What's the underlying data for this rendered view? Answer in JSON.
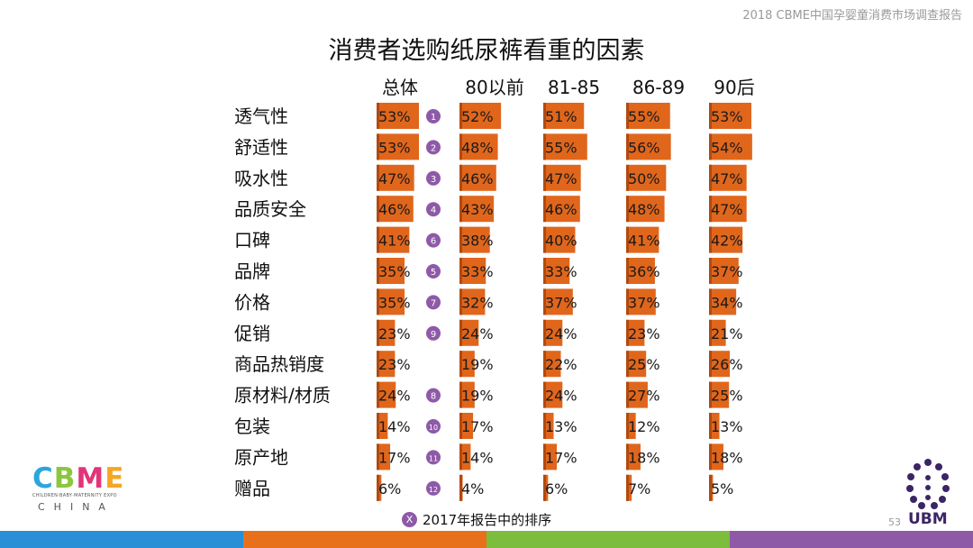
{
  "header_note": "2018 CBME中国孕婴童消费市场调查报告",
  "title": "消费者选购纸尿裤看重的因素",
  "legend": {
    "badge": "X",
    "text": "2017年报告中的排序"
  },
  "page_number": "53",
  "logos": {
    "cbme": {
      "letters": [
        "C",
        "B",
        "M",
        "E"
      ],
      "tagline": "CHILDREN·BABY·MATERNITY EXPO",
      "location": "CHINA"
    },
    "ubm": "UBM"
  },
  "colors": {
    "bar": "#e0661c",
    "bar_edge": "#b14a0f",
    "rank_badge": "#8e5aa8",
    "band": [
      "#2a8fd6",
      "#e8701b",
      "#7cbd3e",
      "#8e5aa8"
    ],
    "cbme": [
      "#2aa6dc",
      "#8cc63f",
      "#e2357a",
      "#f5a623"
    ]
  },
  "chart_data": {
    "type": "bar",
    "categories": [
      "透气性",
      "舒适性",
      "吸水性",
      "品质安全",
      "口碑",
      "品牌",
      "价格",
      "促销",
      "商品热销度",
      "原材料/材质",
      "包装",
      "原产地",
      "赠品"
    ],
    "series": [
      {
        "name": "总体",
        "values": [
          53,
          53,
          47,
          46,
          41,
          35,
          35,
          23,
          23,
          24,
          14,
          17,
          6
        ]
      },
      {
        "name": "80以前",
        "values": [
          52,
          48,
          46,
          43,
          38,
          33,
          32,
          24,
          19,
          19,
          17,
          14,
          4
        ]
      },
      {
        "name": "81-85",
        "values": [
          51,
          55,
          47,
          46,
          40,
          33,
          37,
          24,
          22,
          24,
          13,
          17,
          6
        ]
      },
      {
        "name": "86-89",
        "values": [
          55,
          56,
          50,
          48,
          41,
          36,
          37,
          23,
          25,
          27,
          12,
          18,
          7
        ]
      },
      {
        "name": "90后",
        "values": [
          53,
          54,
          47,
          47,
          42,
          37,
          34,
          21,
          26,
          25,
          13,
          18,
          5
        ]
      }
    ],
    "label_suffix": "%",
    "rank_2017": [
      "1",
      "2",
      "3",
      "4",
      "6",
      "5",
      "7",
      "9",
      "",
      "8",
      "10",
      "11",
      "12"
    ]
  }
}
